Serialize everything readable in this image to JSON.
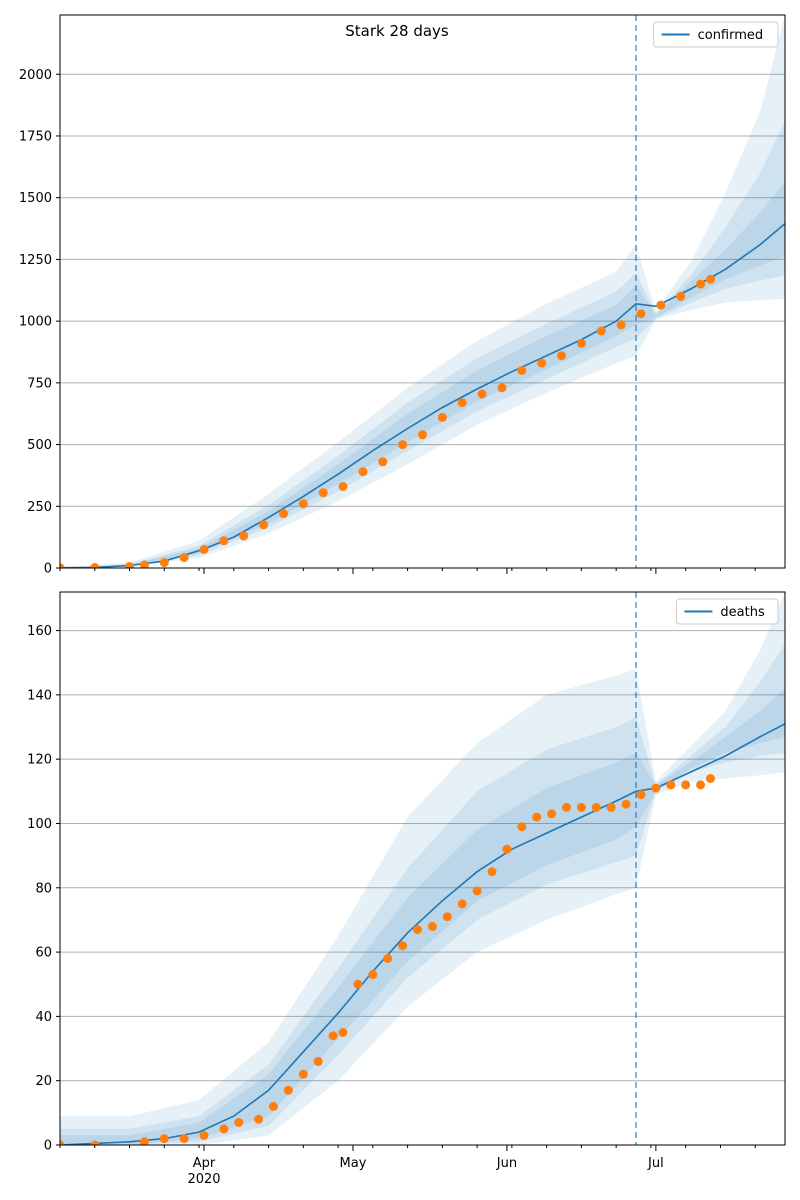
{
  "figure_title": "Stark 28 days",
  "colors": {
    "model_line": "#1f77b4",
    "band": "#1f77b4",
    "observed": "#ff7f0e",
    "grid": "#b0b0b0",
    "forecast_line": "#1f77b4"
  },
  "x_axis": {
    "range": [
      "2020-03-03",
      "2020-07-27"
    ],
    "tick_labels": [
      "Apr",
      "May",
      "Jun",
      "Jul"
    ],
    "tick_dates": [
      "2020-04-01",
      "2020-05-01",
      "2020-06-01",
      "2020-07-01"
    ],
    "year_label": "2020"
  },
  "forecast_start": "2020-06-27",
  "chart_data": [
    {
      "type": "line",
      "name": "confirmed",
      "legend": "confirmed",
      "legend_position": "top-right",
      "grid": "horizontal",
      "ylim": [
        0,
        2240
      ],
      "y_ticks": [
        0,
        250,
        500,
        750,
        1000,
        1250,
        1500,
        1750,
        2000
      ],
      "model": {
        "x": [
          "2020-03-03",
          "2020-03-10",
          "2020-03-17",
          "2020-03-24",
          "2020-03-31",
          "2020-04-07",
          "2020-04-14",
          "2020-04-21",
          "2020-04-28",
          "2020-05-05",
          "2020-05-12",
          "2020-05-19",
          "2020-05-26",
          "2020-06-02",
          "2020-06-09",
          "2020-06-16",
          "2020-06-23",
          "2020-06-27",
          "2020-07-01",
          "2020-07-08",
          "2020-07-15",
          "2020-07-22",
          "2020-07-27"
        ],
        "y": [
          1,
          2,
          10,
          28,
          70,
          125,
          205,
          290,
          380,
          475,
          565,
          650,
          725,
          795,
          860,
          925,
          1000,
          1070,
          1060,
          1130,
          1210,
          1310,
          1395
        ]
      },
      "bands": {
        "x": [
          "2020-03-03",
          "2020-03-17",
          "2020-03-31",
          "2020-04-14",
          "2020-04-28",
          "2020-05-12",
          "2020-05-26",
          "2020-06-09",
          "2020-06-23",
          "2020-06-27",
          "2020-07-01",
          "2020-07-08",
          "2020-07-15",
          "2020-07-22",
          "2020-07-27"
        ],
        "levels": [
          {
            "lower": [
              0,
              4,
              40,
              140,
              270,
              420,
              580,
              710,
              830,
              860,
              1005,
              1045,
              1075,
              1085,
              1090
            ],
            "upper": [
              4,
              22,
              110,
              300,
              510,
              730,
              920,
              1070,
              1200,
              1310,
              1040,
              1240,
              1520,
              1850,
              2240
            ]
          },
          {
            "lower": [
              0,
              6,
              52,
              165,
              310,
              475,
              635,
              765,
              895,
              930,
              1010,
              1075,
              1130,
              1165,
              1185
            ],
            "upper": [
              3,
              16,
              90,
              255,
              455,
              670,
              850,
              990,
              1120,
              1195,
              1030,
              1185,
              1380,
              1600,
              1810
            ]
          },
          {
            "lower": [
              0,
              7,
              60,
              180,
              340,
              510,
              675,
              805,
              940,
              985,
              1015,
              1095,
              1170,
              1225,
              1265
            ],
            "upper": [
              2,
              13,
              80,
              230,
              420,
              625,
              800,
              940,
              1065,
              1145,
              1025,
              1160,
              1290,
              1440,
              1565
            ]
          }
        ]
      },
      "observed": {
        "x": [
          "2020-03-03",
          "2020-03-10",
          "2020-03-17",
          "2020-03-20",
          "2020-03-24",
          "2020-03-28",
          "2020-04-01",
          "2020-04-05",
          "2020-04-09",
          "2020-04-13",
          "2020-04-17",
          "2020-04-21",
          "2020-04-25",
          "2020-04-29",
          "2020-05-03",
          "2020-05-07",
          "2020-05-11",
          "2020-05-15",
          "2020-05-19",
          "2020-05-23",
          "2020-05-27",
          "2020-05-31",
          "2020-06-04",
          "2020-06-08",
          "2020-06-12",
          "2020-06-16",
          "2020-06-20",
          "2020-06-24",
          "2020-06-28",
          "2020-07-02",
          "2020-07-06",
          "2020-07-10",
          "2020-07-12"
        ],
        "y": [
          1,
          2,
          6,
          12,
          22,
          42,
          75,
          110,
          130,
          175,
          220,
          260,
          305,
          330,
          390,
          430,
          500,
          540,
          610,
          670,
          705,
          730,
          800,
          830,
          860,
          910,
          960,
          985,
          1030,
          1065,
          1100,
          1150,
          1170
        ]
      }
    },
    {
      "type": "line",
      "name": "deaths",
      "legend": "deaths",
      "legend_position": "top-right",
      "grid": "horizontal",
      "ylim": [
        0,
        172
      ],
      "y_ticks": [
        0,
        20,
        40,
        60,
        80,
        100,
        120,
        140,
        160
      ],
      "model": {
        "x": [
          "2020-03-03",
          "2020-03-10",
          "2020-03-17",
          "2020-03-24",
          "2020-03-31",
          "2020-04-07",
          "2020-04-14",
          "2020-04-21",
          "2020-04-28",
          "2020-05-05",
          "2020-05-12",
          "2020-05-19",
          "2020-05-26",
          "2020-06-02",
          "2020-06-09",
          "2020-06-16",
          "2020-06-23",
          "2020-06-27",
          "2020-07-01",
          "2020-07-08",
          "2020-07-15",
          "2020-07-22",
          "2020-07-27"
        ],
        "y": [
          0,
          0.5,
          1,
          2,
          4,
          9,
          17,
          29,
          41,
          54,
          66,
          76,
          85,
          92,
          97,
          102,
          107,
          110,
          111,
          116,
          121,
          127,
          131
        ]
      },
      "bands": {
        "x": [
          "2020-03-03",
          "2020-03-17",
          "2020-03-31",
          "2020-04-14",
          "2020-04-28",
          "2020-05-12",
          "2020-05-26",
          "2020-06-09",
          "2020-06-23",
          "2020-06-27",
          "2020-07-01",
          "2020-07-08",
          "2020-07-15",
          "2020-07-22",
          "2020-07-27"
        ],
        "levels": [
          {
            "lower": [
              0,
              0,
              0,
              3,
              20,
              43,
              60,
              70,
              78,
              80,
              109,
              113,
              114,
              115,
              116
            ],
            "upper": [
              9,
              9,
              14,
              32,
              65,
              102,
              125,
              140,
              146,
              148,
              113,
              124,
              135,
              154,
              172
            ]
          },
          {
            "lower": [
              0,
              0,
              1,
              6,
              28,
              52,
              70,
              81,
              88,
              90,
              110,
              116,
              119,
              121,
              122
            ],
            "upper": [
              5,
              5,
              9,
              25,
              55,
              86,
              110,
              123,
              130,
              133,
              112,
              121,
              130,
              144,
              156
            ]
          },
          {
            "lower": [
              0,
              0,
              2,
              9,
              33,
              57,
              76,
              87,
              95,
              99,
              110,
              117,
              122,
              125,
              127
            ],
            "upper": [
              3,
              3,
              7,
              22,
              49,
              77,
              98,
              111,
              119,
              122,
              112,
              119,
              127,
              135,
              142
            ]
          }
        ]
      },
      "observed": {
        "x": [
          "2020-03-03",
          "2020-03-10",
          "2020-03-20",
          "2020-03-24",
          "2020-03-28",
          "2020-04-01",
          "2020-04-05",
          "2020-04-08",
          "2020-04-12",
          "2020-04-15",
          "2020-04-18",
          "2020-04-21",
          "2020-04-24",
          "2020-04-27",
          "2020-04-29",
          "2020-05-02",
          "2020-05-05",
          "2020-05-08",
          "2020-05-11",
          "2020-05-14",
          "2020-05-17",
          "2020-05-20",
          "2020-05-23",
          "2020-05-26",
          "2020-05-29",
          "2020-06-01",
          "2020-06-04",
          "2020-06-07",
          "2020-06-10",
          "2020-06-13",
          "2020-06-16",
          "2020-06-19",
          "2020-06-22",
          "2020-06-25",
          "2020-06-28",
          "2020-07-01",
          "2020-07-04",
          "2020-07-07",
          "2020-07-10",
          "2020-07-12"
        ],
        "y": [
          0,
          0,
          1,
          2,
          2,
          3,
          5,
          7,
          8,
          12,
          17,
          22,
          26,
          34,
          35,
          50,
          53,
          58,
          62,
          67,
          68,
          71,
          75,
          79,
          85,
          92,
          99,
          102,
          103,
          105,
          105,
          105,
          105,
          106,
          109,
          111,
          112,
          112,
          112,
          114
        ]
      }
    }
  ]
}
